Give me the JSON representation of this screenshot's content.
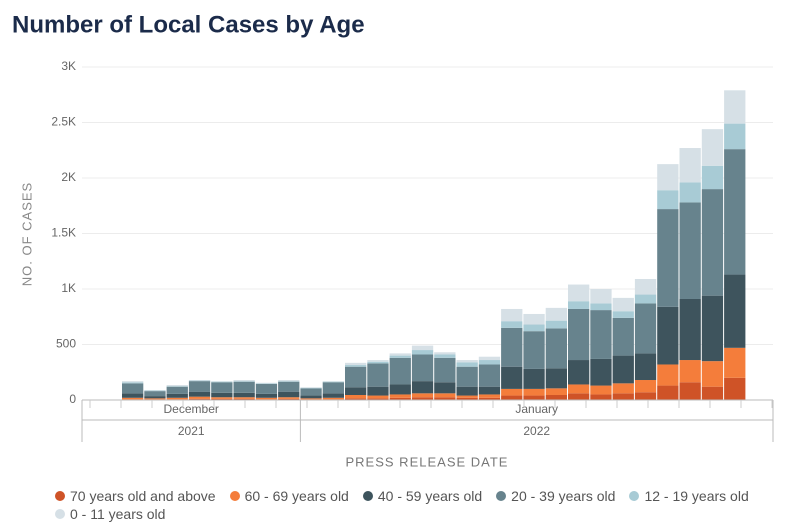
{
  "chart_data": {
    "type": "stacked_bar",
    "title": "Number of Local Cases by Age",
    "y_label": "NO. OF CASES",
    "x_label": "PRESS RELEASE DATE",
    "categories": [
      null,
      null,
      null,
      null,
      null,
      null,
      null,
      null,
      null,
      null,
      null,
      null,
      null,
      null,
      null,
      null,
      null,
      null,
      null,
      null,
      null,
      null,
      null,
      null,
      null,
      null,
      null,
      null
    ],
    "months": [
      {
        "label": "December",
        "bars": 8
      },
      {
        "label": "January",
        "bars": 20
      }
    ],
    "years": [
      {
        "label": "2021",
        "bars": 8
      },
      {
        "label": "2022",
        "bars": 20
      }
    ],
    "ylim": [
      0,
      3000
    ],
    "yticks": [
      0,
      500,
      {
        "value": 1000,
        "label": "1K"
      },
      {
        "value": 1500,
        "label": "1.5K"
      },
      {
        "value": 2000,
        "label": "2K"
      },
      {
        "value": 2500,
        "label": "2.5K"
      },
      {
        "value": 3000,
        "label": "3K"
      }
    ],
    "grid": true,
    "series": [
      {
        "name": "70 years old and above",
        "color": "#cf5327",
        "values": [
          5,
          5,
          5,
          10,
          10,
          10,
          5,
          10,
          5,
          5,
          15,
          15,
          20,
          25,
          25,
          20,
          20,
          40,
          40,
          45,
          60,
          50,
          60,
          70,
          130,
          160,
          120,
          200
        ]
      },
      {
        "name": "60 - 69 years old",
        "color": "#f47d3b",
        "values": [
          15,
          10,
          15,
          20,
          15,
          15,
          15,
          15,
          10,
          15,
          30,
          25,
          30,
          35,
          35,
          20,
          30,
          60,
          60,
          60,
          80,
          80,
          90,
          110,
          190,
          200,
          230,
          270
        ]
      },
      {
        "name": "40 - 59 years old",
        "color": "#3e545d",
        "values": [
          40,
          20,
          35,
          45,
          40,
          40,
          35,
          50,
          25,
          40,
          70,
          80,
          90,
          110,
          100,
          80,
          70,
          200,
          180,
          180,
          220,
          240,
          250,
          240,
          520,
          550,
          590,
          660
        ]
      },
      {
        "name": "20 - 39 years old",
        "color": "#67838d",
        "values": [
          90,
          45,
          65,
          95,
          95,
          100,
          90,
          90,
          65,
          100,
          185,
          210,
          240,
          240,
          220,
          180,
          200,
          350,
          340,
          360,
          460,
          440,
          340,
          450,
          880,
          870,
          960,
          1130
        ]
      },
      {
        "name": "12 - 19 years old",
        "color": "#a8cbd5",
        "values": [
          10,
          5,
          5,
          5,
          5,
          5,
          5,
          5,
          5,
          5,
          15,
          15,
          20,
          40,
          30,
          40,
          40,
          60,
          60,
          70,
          70,
          60,
          60,
          80,
          170,
          180,
          210,
          230
        ]
      },
      {
        "name": "0 - 11 years old",
        "color": "#d6e0e6",
        "values": [
          10,
          5,
          10,
          5,
          5,
          10,
          5,
          10,
          5,
          5,
          20,
          15,
          20,
          40,
          20,
          20,
          30,
          110,
          95,
          115,
          150,
          130,
          120,
          140,
          235,
          310,
          330,
          300
        ]
      }
    ]
  }
}
